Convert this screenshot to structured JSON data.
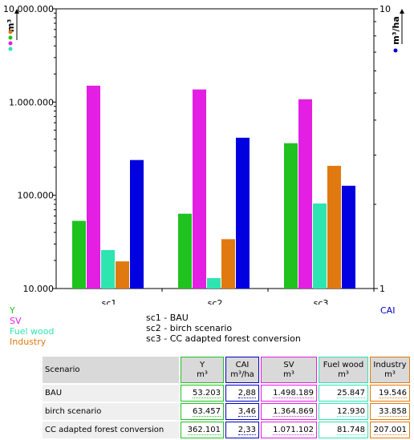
{
  "chart_data": {
    "type": "bar",
    "scale": "log",
    "categories": [
      "sc1",
      "sc2",
      "sc3"
    ],
    "left_axis": {
      "unit": "m³",
      "ylim": [
        10000,
        10000000
      ],
      "ticks": [
        10000,
        100000,
        1000000,
        10000000
      ],
      "tick_labels": [
        "10.000",
        "100.000",
        "1.000.000",
        "10.000.000"
      ]
    },
    "right_axis": {
      "unit": "m³/ha",
      "ylim": [
        1,
        10
      ],
      "ticks": [
        1,
        10
      ],
      "tick_labels": [
        "1",
        "10"
      ]
    },
    "series": [
      {
        "name": "Y",
        "axis": "left",
        "color": "#1fc21f",
        "values": [
          53203,
          63457,
          362101
        ]
      },
      {
        "name": "SV",
        "axis": "left",
        "color": "#e21fe2",
        "values": [
          1498189,
          1364869,
          1071102
        ]
      },
      {
        "name": "Fuel wood",
        "axis": "left",
        "color": "#2de5b0",
        "values": [
          25847,
          12930,
          81748
        ]
      },
      {
        "name": "Industry",
        "axis": "left",
        "color": "#e07a10",
        "values": [
          19546,
          33858,
          207001
        ]
      },
      {
        "name": "CAI",
        "axis": "right",
        "color": "#0000e0",
        "values": [
          2.88,
          3.46,
          2.33
        ]
      }
    ],
    "axis_markers": {
      "left_dots": [
        "#e07a10",
        "#1fc21f",
        "#e21fe2",
        "#2de5b0"
      ],
      "right_dots": [
        "#0000e0"
      ]
    }
  },
  "legend": {
    "left": [
      {
        "label": "Y",
        "color": "#1fc21f"
      },
      {
        "label": "SV",
        "color": "#e21fe2"
      },
      {
        "label": "Fuel wood",
        "color": "#2de5b0"
      },
      {
        "label": "Industry",
        "color": "#e07a10"
      }
    ],
    "right": {
      "label": "CAI",
      "color": "#0000e0"
    }
  },
  "scenario_list": [
    "sc1 - BAU",
    "sc2 - birch scenario",
    "sc3 - CC adapted forest conversion"
  ],
  "table": {
    "header": {
      "scenario": "Scenario",
      "cols": [
        {
          "name": "Y",
          "unit": "m³"
        },
        {
          "name": "CAI",
          "unit": "m³/ha"
        },
        {
          "name": "SV",
          "unit": "m³"
        },
        {
          "name": "Fuel wood",
          "unit": "m³"
        },
        {
          "name": "Industry",
          "unit": "m³"
        }
      ]
    },
    "rows": [
      {
        "name": "BAU",
        "y": "53.203",
        "cai": "2,88",
        "sv": "1.498.189",
        "fw": "25.847",
        "ind": "19.546"
      },
      {
        "name": "birch scenario",
        "y": "63.457",
        "cai": "3,46",
        "sv": "1.364.869",
        "fw": "12.930",
        "ind": "33.858"
      },
      {
        "name": "CC adapted forest conversion",
        "y": "362.101",
        "cai": "2,33",
        "sv": "1.071.102",
        "fw": "81.748",
        "ind": "207.001"
      }
    ]
  }
}
